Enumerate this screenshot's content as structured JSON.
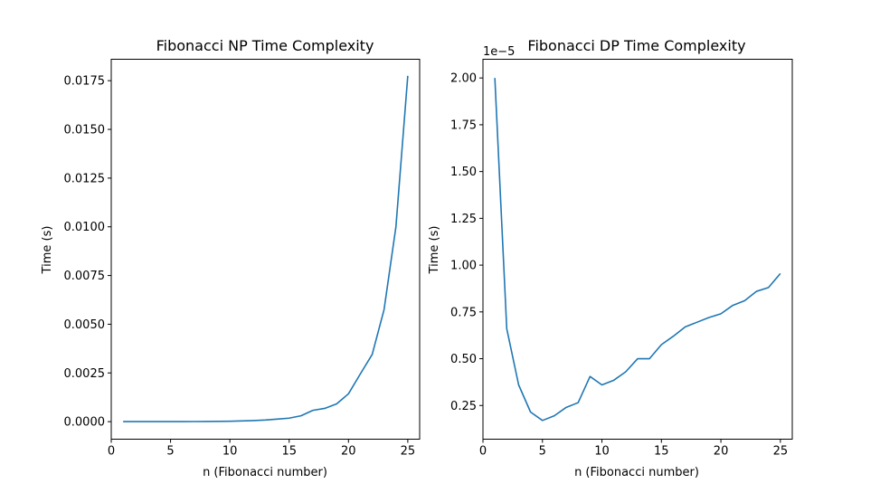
{
  "figure": {
    "background": "#ffffff",
    "line_color": "#1f77b4"
  },
  "chart_data": [
    {
      "type": "line",
      "title": "Fibonacci NP Time Complexity",
      "xlabel": "n (Fibonacci number)",
      "ylabel": "Time (s)",
      "xlim": [
        0,
        26
      ],
      "ylim": [
        -0.0009,
        0.0186
      ],
      "x_ticks": [
        0,
        5,
        10,
        15,
        20,
        25
      ],
      "x_tick_labels": [
        "0",
        "5",
        "10",
        "15",
        "20",
        "25"
      ],
      "y_ticks": [
        0,
        0.0025,
        0.005,
        0.0075,
        0.01,
        0.0125,
        0.015,
        0.0175
      ],
      "y_tick_labels": [
        "0.0000",
        "0.0025",
        "0.0050",
        "0.0075",
        "0.0100",
        "0.0125",
        "0.0150",
        "0.0175"
      ],
      "offset_label": "",
      "grid": false,
      "series": [
        {
          "x": [
            1,
            2,
            3,
            4,
            5,
            6,
            7,
            8,
            9,
            10,
            11,
            12,
            13,
            14,
            15,
            16,
            17,
            18,
            19,
            20,
            21,
            22,
            23,
            24,
            25
          ],
          "y": [
            1e-06,
            1e-06,
            1e-06,
            2e-06,
            3e-06,
            4e-06,
            6e-06,
            9e-06,
            1.4e-05,
            2.2e-05,
            3.5e-05,
            5.5e-05,
            8.5e-05,
            0.00013,
            0.00018,
            0.0003,
            0.00058,
            0.00068,
            0.00091,
            0.00143,
            0.00245,
            0.00345,
            0.00575,
            0.01,
            0.01775
          ]
        }
      ]
    },
    {
      "type": "line",
      "title": "Fibonacci DP Time Complexity",
      "xlabel": "n (Fibonacci number)",
      "ylabel": "Time (s)",
      "xlim": [
        0,
        26
      ],
      "ylim": [
        0.07,
        2.1
      ],
      "x_ticks": [
        0,
        5,
        10,
        15,
        20,
        25
      ],
      "x_tick_labels": [
        "0",
        "5",
        "10",
        "15",
        "20",
        "25"
      ],
      "y_ticks": [
        0.25,
        0.5,
        0.75,
        1.0,
        1.25,
        1.5,
        1.75,
        2.0
      ],
      "y_tick_labels": [
        "0.25",
        "0.50",
        "0.75",
        "1.00",
        "1.25",
        "1.50",
        "1.75",
        "2.00"
      ],
      "offset_label": "1e−5",
      "grid": false,
      "series": [
        {
          "x": [
            1,
            2,
            3,
            4,
            5,
            6,
            7,
            8,
            9,
            10,
            11,
            12,
            13,
            14,
            15,
            16,
            17,
            18,
            19,
            20,
            21,
            22,
            23,
            24,
            25
          ],
          "y": [
            2.0,
            0.66,
            0.36,
            0.215,
            0.17,
            0.195,
            0.24,
            0.265,
            0.405,
            0.36,
            0.385,
            0.43,
            0.5,
            0.5,
            0.575,
            0.62,
            0.67,
            0.695,
            0.72,
            0.74,
            0.785,
            0.81,
            0.86,
            0.88,
            0.955
          ]
        }
      ]
    }
  ]
}
